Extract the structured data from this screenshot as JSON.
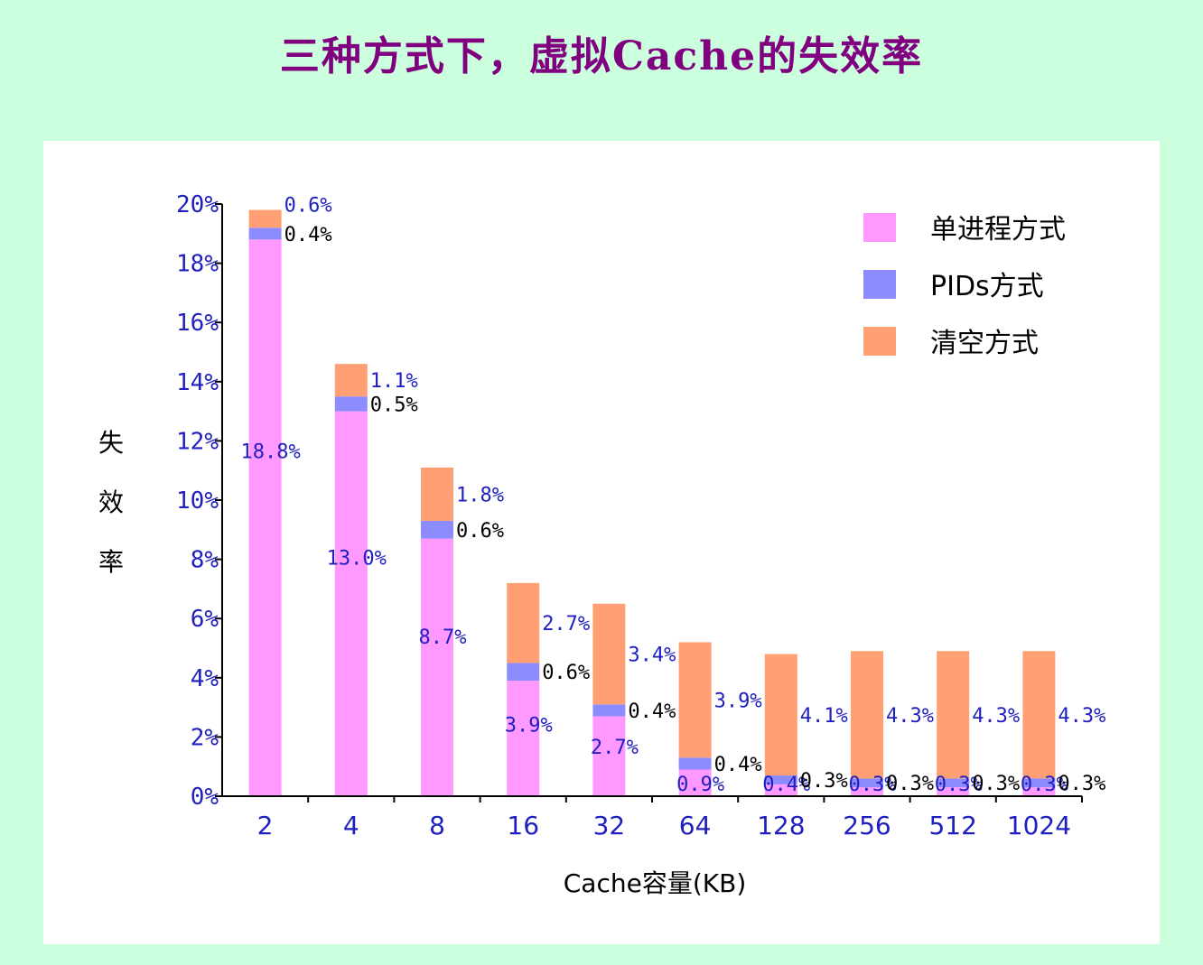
{
  "title": "三种方式下，虚拟Cache的失效率",
  "chart_data": {
    "type": "bar",
    "stacked": true,
    "categories": [
      "2",
      "4",
      "8",
      "16",
      "32",
      "64",
      "128",
      "256",
      "512",
      "1024"
    ],
    "series": [
      {
        "name": "单进程方式",
        "color": "#FF99FF",
        "values": [
          18.8,
          13.0,
          8.7,
          3.9,
          2.7,
          0.9,
          0.4,
          0.3,
          0.3,
          0.3
        ],
        "labels": [
          "18.8%",
          "13.0%",
          "8.7%",
          "3.9%",
          "2.7%",
          "0.9%",
          "0.4%",
          "0.3%",
          "0.3%",
          "0.3%"
        ]
      },
      {
        "name": "PIDs方式",
        "color": "#8C8CFF",
        "values": [
          0.4,
          0.5,
          0.6,
          0.6,
          0.4,
          0.4,
          0.3,
          0.3,
          0.3,
          0.3
        ],
        "labels": [
          "0.4%",
          "0.5%",
          "0.6%",
          "0.6%",
          "0.4%",
          "0.4%",
          "0.3%",
          "0.3%",
          "0.3%",
          "0.3%"
        ]
      },
      {
        "name": "清空方式",
        "color": "#FF9F73",
        "values": [
          0.6,
          1.1,
          1.8,
          2.7,
          3.4,
          3.9,
          4.1,
          4.3,
          4.3,
          4.3
        ],
        "labels": [
          "0.6%",
          "1.1%",
          "1.8%",
          "2.7%",
          "3.4%",
          "3.9%",
          "4.1%",
          "4.3%",
          "4.3%",
          "4.3%"
        ]
      }
    ],
    "ylim": [
      0,
      20
    ],
    "yticks": [
      "0%",
      "2%",
      "4%",
      "6%",
      "8%",
      "10%",
      "12%",
      "14%",
      "16%",
      "18%",
      "20%"
    ],
    "xlabel": "Cache容量(KB)",
    "ylabel": [
      "失",
      "效",
      "率"
    ],
    "legend_position": "top-right"
  }
}
